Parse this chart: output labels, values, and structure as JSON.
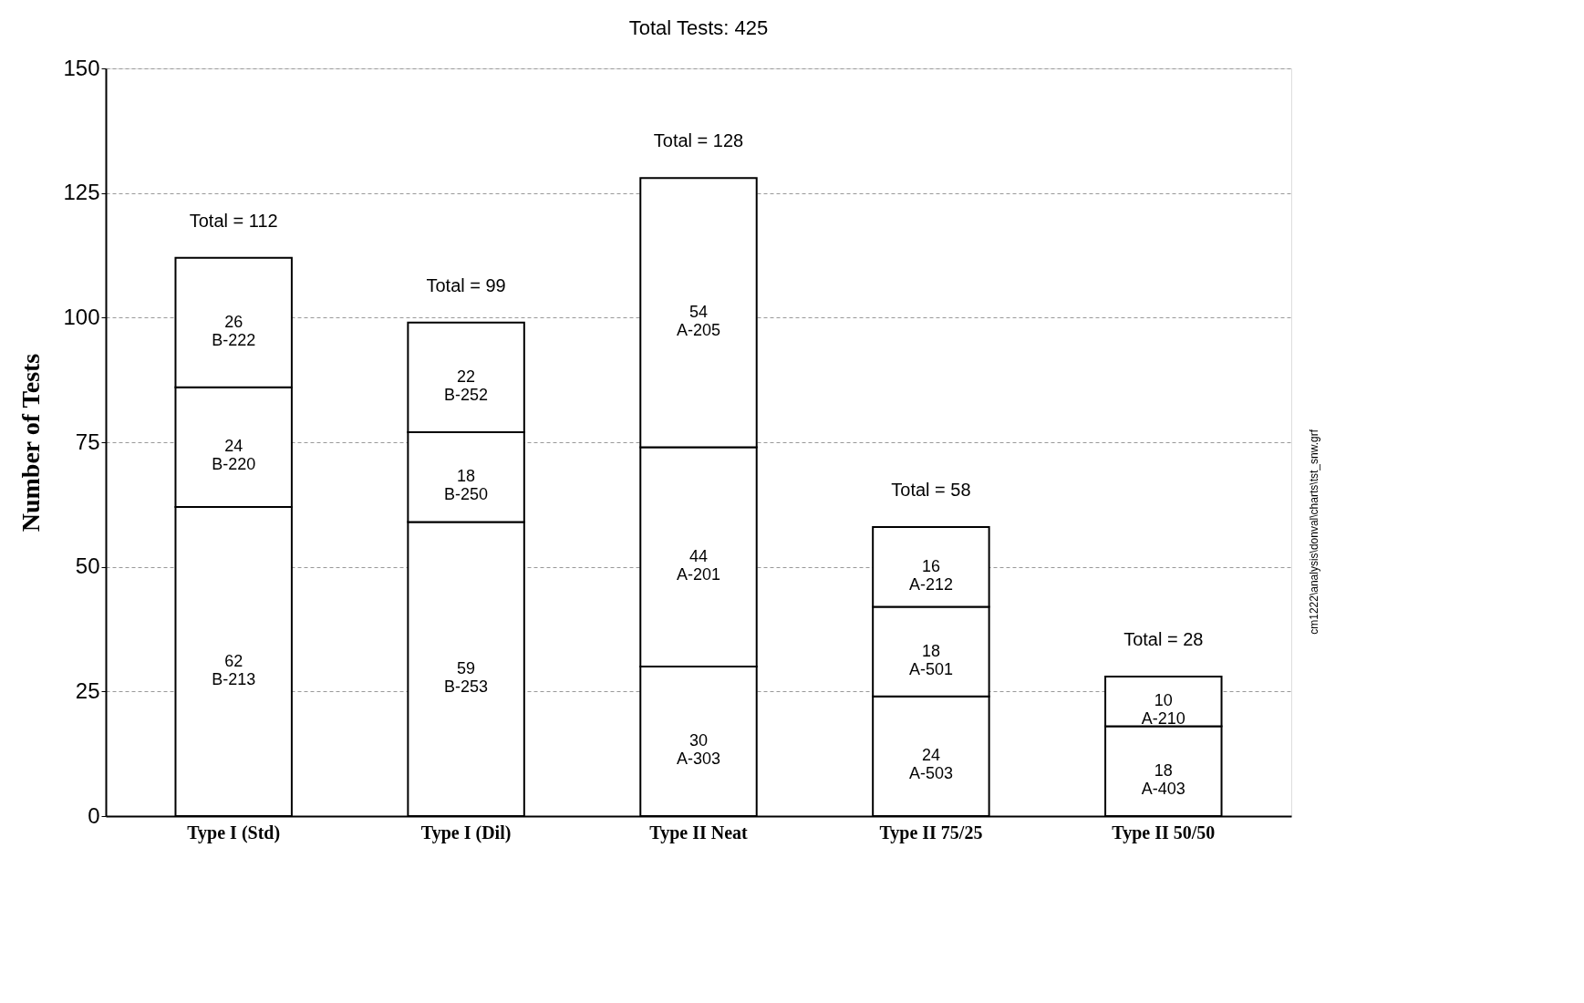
{
  "chart_data": {
    "type": "bar",
    "stacked": true,
    "title": "Total Tests: 425",
    "ylabel": "Number of Tests",
    "categories": [
      "Type I (Std)",
      "Type I (Dil)",
      "Type II Neat",
      "Type II 75/25",
      "Type II 50/50"
    ],
    "series": [
      {
        "color": "#ffffff",
        "values": [
          62,
          59,
          30,
          24,
          18
        ],
        "value_labels": [
          "62 B-213",
          "59 B-253",
          "30 A-303",
          "24 A-503",
          "18 A-403"
        ]
      },
      {
        "color": "#ffffff",
        "values": [
          24,
          18,
          44,
          18,
          10
        ],
        "value_labels": [
          "24 B-220",
          "18 B-250",
          "44 A-201",
          "18 A-501",
          "10 A-210"
        ]
      },
      {
        "color": "#ffffff",
        "values": [
          26,
          22,
          54,
          16,
          null
        ],
        "value_labels": [
          "26 B-222",
          "22 B-252",
          "54 A-205",
          "16 A-212",
          null
        ]
      }
    ],
    "ylim": [
      0,
      150
    ],
    "yticks": [
      0,
      25,
      50,
      75,
      100,
      125,
      150
    ],
    "grid": "y",
    "totals": [
      "Total = 112",
      "Total = 99",
      "Total = 128",
      "Total = 58",
      "Total = 28"
    ],
    "annotations": [
      "cm1222\\analysis\\donval\\charts\\tst_snw.grf"
    ]
  }
}
